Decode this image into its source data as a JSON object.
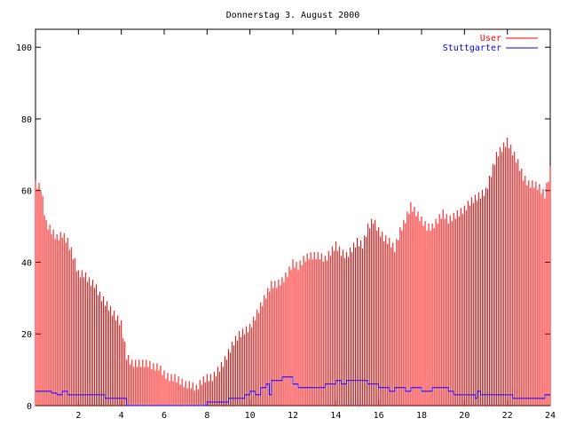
{
  "chart_data": {
    "type": "bar",
    "title": "Donnerstag 3. August 2000",
    "xlabel": "",
    "ylabel": "",
    "xlim": [
      0,
      24
    ],
    "ylim": [
      0,
      105
    ],
    "x_ticks": [
      "2",
      "4",
      "6",
      "8",
      "10",
      "12",
      "14",
      "16",
      "18",
      "20",
      "22",
      "24"
    ],
    "y_ticks": [
      "0",
      "20",
      "40",
      "60",
      "80",
      "100"
    ],
    "legend_position": "top-right",
    "grid": false,
    "series": [
      {
        "name": "User",
        "style": "impulses",
        "color": "#ff0000",
        "points": [
          [
            0.0,
            62
          ],
          [
            0.25,
            61
          ],
          [
            0.5,
            51
          ],
          [
            0.75,
            49
          ],
          [
            1.0,
            47
          ],
          [
            1.25,
            48
          ],
          [
            1.5,
            46
          ],
          [
            1.75,
            42
          ],
          [
            2.0,
            37
          ],
          [
            2.25,
            37
          ],
          [
            2.5,
            35
          ],
          [
            2.75,
            34
          ],
          [
            3.0,
            31
          ],
          [
            3.25,
            29
          ],
          [
            3.5,
            27
          ],
          [
            3.75,
            25
          ],
          [
            4.0,
            23
          ],
          [
            4.25,
            14
          ],
          [
            4.5,
            12
          ],
          [
            4.75,
            12
          ],
          [
            5.0,
            12
          ],
          [
            5.25,
            12
          ],
          [
            5.5,
            11
          ],
          [
            5.75,
            11
          ],
          [
            6.0,
            9
          ],
          [
            6.25,
            8
          ],
          [
            6.5,
            8
          ],
          [
            6.75,
            7
          ],
          [
            7.0,
            6
          ],
          [
            7.25,
            6
          ],
          [
            7.5,
            5
          ],
          [
            7.75,
            7
          ],
          [
            8.0,
            8
          ],
          [
            8.25,
            8
          ],
          [
            8.5,
            10
          ],
          [
            8.75,
            12
          ],
          [
            9.0,
            15
          ],
          [
            9.25,
            18
          ],
          [
            9.5,
            20
          ],
          [
            9.75,
            21
          ],
          [
            10.0,
            22
          ],
          [
            10.25,
            25
          ],
          [
            10.5,
            28
          ],
          [
            10.75,
            31
          ],
          [
            11.0,
            34
          ],
          [
            11.25,
            34
          ],
          [
            11.5,
            35
          ],
          [
            11.75,
            37
          ],
          [
            12.0,
            40
          ],
          [
            12.25,
            39
          ],
          [
            12.5,
            41
          ],
          [
            12.75,
            42
          ],
          [
            13.0,
            42
          ],
          [
            13.25,
            42
          ],
          [
            13.5,
            41
          ],
          [
            13.75,
            43
          ],
          [
            14.0,
            45
          ],
          [
            14.25,
            43
          ],
          [
            14.5,
            42
          ],
          [
            14.75,
            44
          ],
          [
            15.0,
            46
          ],
          [
            15.25,
            45
          ],
          [
            15.5,
            50
          ],
          [
            15.75,
            52
          ],
          [
            16.0,
            49
          ],
          [
            16.25,
            47
          ],
          [
            16.5,
            46
          ],
          [
            16.75,
            44
          ],
          [
            17.0,
            49
          ],
          [
            17.25,
            52
          ],
          [
            17.5,
            56
          ],
          [
            17.75,
            54
          ],
          [
            18.0,
            52
          ],
          [
            18.25,
            50
          ],
          [
            18.5,
            50
          ],
          [
            18.75,
            52
          ],
          [
            19.0,
            54
          ],
          [
            19.25,
            52
          ],
          [
            19.5,
            53
          ],
          [
            19.75,
            54
          ],
          [
            20.0,
            55
          ],
          [
            20.25,
            57
          ],
          [
            20.5,
            58
          ],
          [
            20.75,
            59
          ],
          [
            21.0,
            60
          ],
          [
            21.25,
            65
          ],
          [
            21.5,
            70
          ],
          [
            21.75,
            72
          ],
          [
            22.0,
            74
          ],
          [
            22.25,
            71
          ],
          [
            22.5,
            68
          ],
          [
            22.75,
            64
          ],
          [
            23.0,
            62
          ],
          [
            23.25,
            62
          ],
          [
            23.5,
            61
          ],
          [
            23.75,
            59
          ],
          [
            24.0,
            66
          ]
        ]
      },
      {
        "name": "Stuttgarter",
        "style": "steps",
        "color": "#0000ff",
        "points": [
          [
            0.0,
            4
          ],
          [
            0.75,
            3.5
          ],
          [
            1.0,
            3
          ],
          [
            1.25,
            4
          ],
          [
            1.5,
            3
          ],
          [
            2.0,
            3
          ],
          [
            3.0,
            3
          ],
          [
            3.25,
            2
          ],
          [
            4.25,
            0
          ],
          [
            8.0,
            1
          ],
          [
            9.0,
            2
          ],
          [
            9.75,
            3
          ],
          [
            10.0,
            4
          ],
          [
            10.25,
            3
          ],
          [
            10.5,
            5
          ],
          [
            10.75,
            6
          ],
          [
            10.9,
            3
          ],
          [
            11.0,
            7
          ],
          [
            11.5,
            8
          ],
          [
            12.0,
            6
          ],
          [
            12.25,
            5
          ],
          [
            13.5,
            6
          ],
          [
            14.0,
            7
          ],
          [
            14.25,
            6
          ],
          [
            14.5,
            7
          ],
          [
            15.5,
            6
          ],
          [
            16.0,
            5
          ],
          [
            16.5,
            4
          ],
          [
            16.75,
            5
          ],
          [
            17.25,
            4
          ],
          [
            17.5,
            5
          ],
          [
            18.0,
            4
          ],
          [
            18.5,
            5
          ],
          [
            19.25,
            4
          ],
          [
            19.5,
            3
          ],
          [
            20.5,
            2
          ],
          [
            20.6,
            4
          ],
          [
            20.75,
            3
          ],
          [
            22.0,
            3
          ],
          [
            22.25,
            2
          ],
          [
            22.75,
            2
          ],
          [
            23.75,
            3
          ],
          [
            24.0,
            3
          ]
        ]
      }
    ]
  }
}
